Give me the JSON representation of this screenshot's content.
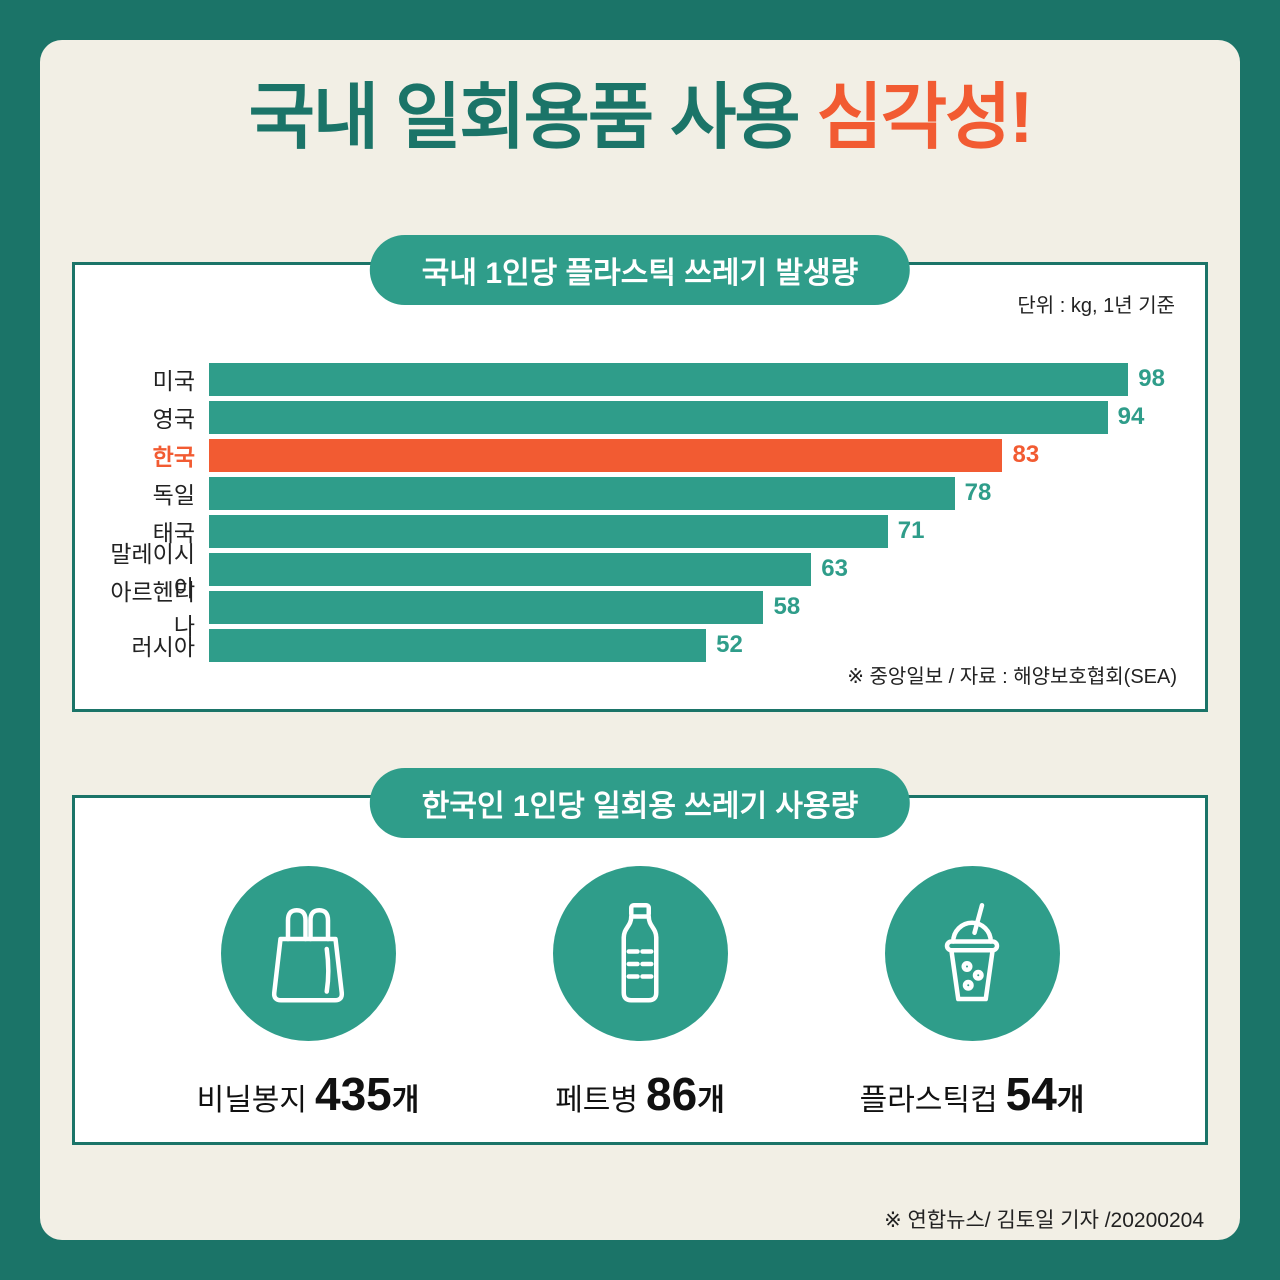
{
  "page": {
    "title_main": "국내 일회용품 사용 ",
    "title_accent": "심각성!"
  },
  "colors": {
    "teal_dark": "#1b7468",
    "teal": "#2f9d8a",
    "orange": "#f25b32",
    "cream": "#f2efe5"
  },
  "chart_panel": {
    "header": "국내 1인당 플라스틱 쓰레기 발생량",
    "unit_note": "단위 : kg, 1년 기준",
    "source": "※ 중앙일보 / 자료 : 해양보호협회(SEA)"
  },
  "chart_data": {
    "type": "bar",
    "orientation": "horizontal",
    "title": "국내 1인당 플라스틱 쓰레기 발생량",
    "unit": "kg, 1년 기준",
    "categories": [
      "미국",
      "영국",
      "한국",
      "독일",
      "태국",
      "말레이시아",
      "아르헨티나",
      "러시아"
    ],
    "values": [
      98,
      94,
      83,
      78,
      71,
      63,
      58,
      52
    ],
    "highlight_category": "한국",
    "highlight_color": "#f25b32",
    "bar_color": "#2f9d8a",
    "xlim": [
      0,
      100
    ],
    "grid": false,
    "value_labels": true
  },
  "usage_panel": {
    "header": "한국인 1인당 일회용 쓰레기 사용량",
    "items": [
      {
        "icon": "plastic-bag-icon",
        "label": "비닐봉지",
        "value": "435",
        "unit": "개"
      },
      {
        "icon": "pet-bottle-icon",
        "label": "페트병",
        "value": "86",
        "unit": "개"
      },
      {
        "icon": "plastic-cup-icon",
        "label": "플라스틱컵",
        "value": "54",
        "unit": "개"
      }
    ]
  },
  "footer": {
    "credit": "※ 연합뉴스/ 김토일 기자 /20200204"
  }
}
